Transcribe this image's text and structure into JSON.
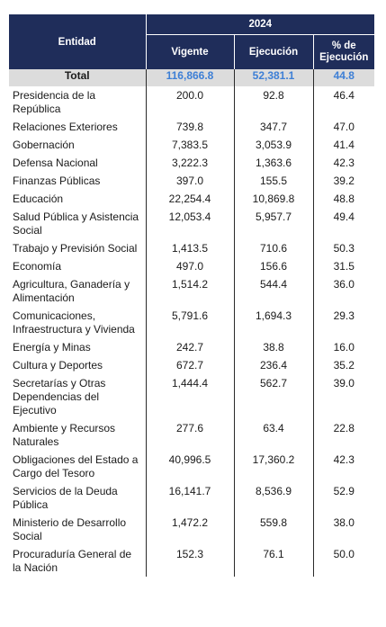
{
  "header": {
    "entity": "Entidad",
    "year": "2024",
    "col_vigente": "Vigente",
    "col_ejecucion": "Ejecución",
    "col_pct": "% de Ejecución"
  },
  "total": {
    "label": "Total",
    "vigente": "116,866.8",
    "ejecucion": "52,381.1",
    "pct": "44.8"
  },
  "rows": [
    {
      "entidad": "Presidencia de la República",
      "vigente": "200.0",
      "ejecucion": "92.8",
      "pct": "46.4"
    },
    {
      "entidad": "Relaciones Exteriores",
      "vigente": "739.8",
      "ejecucion": "347.7",
      "pct": "47.0"
    },
    {
      "entidad": "Gobernación",
      "vigente": "7,383.5",
      "ejecucion": "3,053.9",
      "pct": "41.4"
    },
    {
      "entidad": "Defensa Nacional",
      "vigente": "3,222.3",
      "ejecucion": "1,363.6",
      "pct": "42.3"
    },
    {
      "entidad": "Finanzas Públicas",
      "vigente": "397.0",
      "ejecucion": "155.5",
      "pct": "39.2"
    },
    {
      "entidad": "Educación",
      "vigente": "22,254.4",
      "ejecucion": "10,869.8",
      "pct": "48.8"
    },
    {
      "entidad": "Salud Pública y Asistencia Social",
      "vigente": "12,053.4",
      "ejecucion": "5,957.7",
      "pct": "49.4"
    },
    {
      "entidad": "Trabajo y Previsión Social",
      "vigente": "1,413.5",
      "ejecucion": "710.6",
      "pct": "50.3"
    },
    {
      "entidad": "Economía",
      "vigente": "497.0",
      "ejecucion": "156.6",
      "pct": "31.5"
    },
    {
      "entidad": "Agricultura, Ganadería y Alimentación",
      "vigente": "1,514.2",
      "ejecucion": "544.4",
      "pct": "36.0"
    },
    {
      "entidad": "Comunicaciones, Infraestructura y Vivienda",
      "vigente": "5,791.6",
      "ejecucion": "1,694.3",
      "pct": "29.3"
    },
    {
      "entidad": "Energía y Minas",
      "vigente": "242.7",
      "ejecucion": "38.8",
      "pct": "16.0"
    },
    {
      "entidad": "Cultura y Deportes",
      "vigente": "672.7",
      "ejecucion": "236.4",
      "pct": "35.2"
    },
    {
      "entidad": "Secretarías y Otras Dependencias del Ejecutivo",
      "vigente": "1,444.4",
      "ejecucion": "562.7",
      "pct": "39.0"
    },
    {
      "entidad": "Ambiente y Recursos Naturales",
      "vigente": "277.6",
      "ejecucion": "63.4",
      "pct": "22.8"
    },
    {
      "entidad": "Obligaciones del Estado a Cargo del Tesoro",
      "vigente": "40,996.5",
      "ejecucion": "17,360.2",
      "pct": "42.3"
    },
    {
      "entidad": "Servicios de la Deuda Pública",
      "vigente": "16,141.7",
      "ejecucion": "8,536.9",
      "pct": "52.9"
    },
    {
      "entidad": "Ministerio de Desarrollo Social",
      "vigente": "1,472.2",
      "ejecucion": "559.8",
      "pct": "38.0"
    },
    {
      "entidad": "Procuraduría General de la Nación",
      "vigente": "152.3",
      "ejecucion": "76.1",
      "pct": "50.0"
    }
  ],
  "colors": {
    "header_bg": "#1f2d5a",
    "total_bg": "#dcdcdc",
    "total_text": "#3d7fd6"
  }
}
